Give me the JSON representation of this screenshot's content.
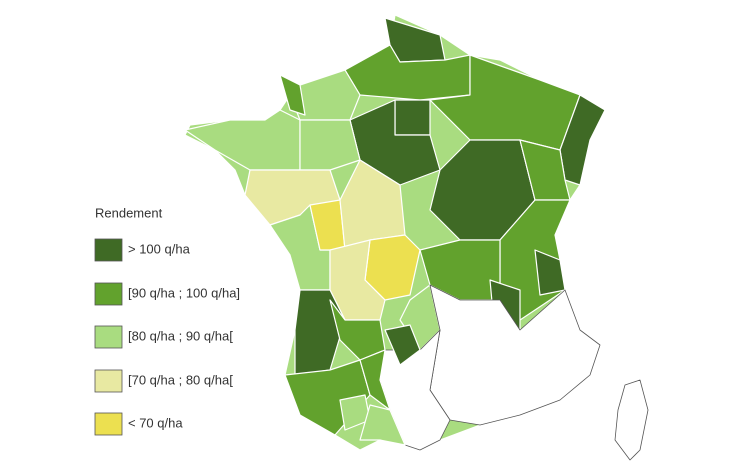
{
  "legend": {
    "title": "Rendement",
    "items": [
      {
        "label": "> 100 q/ha",
        "color": "#3f6a25"
      },
      {
        "label": "[90 q/ha ; 100 q/ha]",
        "color": "#62a22d"
      },
      {
        "label": "[80 q/ha ; 90 q/ha[",
        "color": "#a9dc80"
      },
      {
        "label": "[70 q/ha ; 80 q/ha[",
        "color": "#e8e9a2"
      },
      {
        "label": "< 70 q/ha",
        "color": "#ece050"
      }
    ]
  }
}
